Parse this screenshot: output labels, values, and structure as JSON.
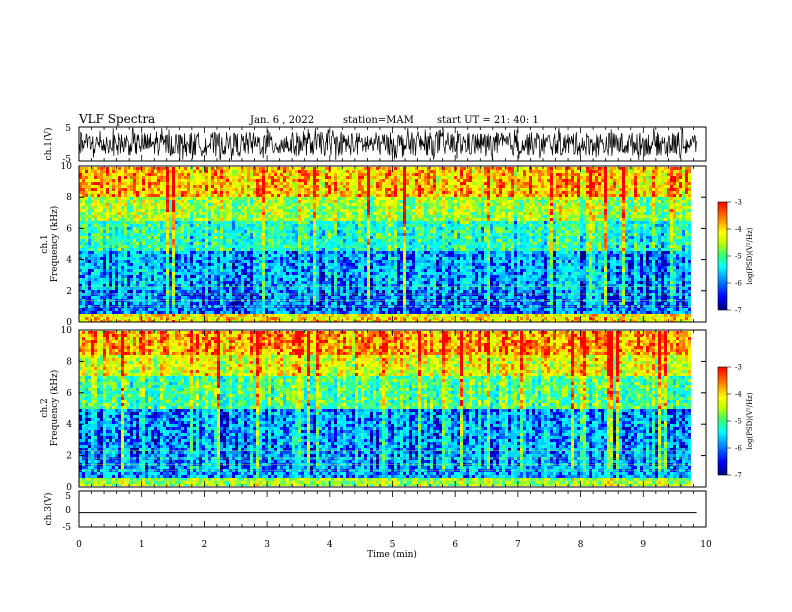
{
  "header": {
    "title": "VLF Spectra",
    "date": "Jan. 6 , 2022",
    "station": "station=MAM",
    "start_ut": "start UT =  21: 40: 1"
  },
  "colors": {
    "waveform": "#000000",
    "colormap": [
      "#000080",
      "#0000ff",
      "#00c0ff",
      "#00ffff",
      "#40ff80",
      "#c0ff00",
      "#ffff00",
      "#ff8000",
      "#ff0000"
    ]
  },
  "chart_data": [
    {
      "type": "line",
      "panel": "ch1-waveform",
      "ylabel": "ch.1(V)",
      "ylim": [
        -5,
        5
      ],
      "yticks": [
        "5",
        "-5"
      ],
      "xlim": [
        0,
        10
      ],
      "description_values": {
        "approx_amplitude_V": [
          -3.5,
          3.5
        ]
      }
    },
    {
      "type": "heatmap",
      "panel": "ch1-spectrogram",
      "ylabel_line1": "ch.1",
      "ylabel_line2": "Frequency (kHz)",
      "ylim": [
        0,
        10
      ],
      "yticks": [
        "0",
        "2",
        "4",
        "6",
        "8",
        "10"
      ],
      "xlim": [
        0,
        9.85
      ],
      "colorbar": {
        "label": "log(PSD)(V²/Hz)",
        "range": [
          -7,
          -3
        ],
        "ticks": [
          "-3",
          "-4",
          "-5",
          "-6",
          "-7"
        ]
      },
      "bands": [
        {
          "freq_kHz": [
            0,
            0.5
          ],
          "logPSD": -4.0
        },
        {
          "freq_kHz": [
            0.5,
            2
          ],
          "logPSD": -6.2
        },
        {
          "freq_kHz": [
            2,
            4.5
          ],
          "logPSD": -6.0
        },
        {
          "freq_kHz": [
            4.5,
            6.5
          ],
          "logPSD": -5.3
        },
        {
          "freq_kHz": [
            6.5,
            8
          ],
          "logPSD": -4.6
        },
        {
          "freq_kHz": [
            8,
            10
          ],
          "logPSD": -3.8
        }
      ]
    },
    {
      "type": "heatmap",
      "panel": "ch2-spectrogram",
      "ylabel_line1": "ch.2",
      "ylabel_line2": "Frequency (kHz)",
      "ylim": [
        0,
        10
      ],
      "yticks": [
        "0",
        "2",
        "4",
        "6",
        "8",
        "10"
      ],
      "xlim": [
        0,
        9.85
      ],
      "colorbar": {
        "label": "log(PSD)(V²/Hz)",
        "range": [
          -7,
          -3
        ],
        "ticks": [
          "-3",
          "-4",
          "-5",
          "-6",
          "-7"
        ]
      },
      "bands": [
        {
          "freq_kHz": [
            0,
            0.5
          ],
          "logPSD": -4.6
        },
        {
          "freq_kHz": [
            0.5,
            2
          ],
          "logPSD": -6.0
        },
        {
          "freq_kHz": [
            2,
            5
          ],
          "logPSD": -6.0
        },
        {
          "freq_kHz": [
            5,
            7
          ],
          "logPSD": -5.0
        },
        {
          "freq_kHz": [
            7,
            8.5
          ],
          "logPSD": -4.2
        },
        {
          "freq_kHz": [
            8.5,
            10
          ],
          "logPSD": -3.6
        }
      ]
    },
    {
      "type": "line",
      "panel": "ch3-waveform",
      "ylabel": "ch.3(V)",
      "ylim": [
        -5,
        5
      ],
      "yticks": [
        "5",
        "0",
        "-5"
      ],
      "xlim": [
        0,
        10
      ],
      "x": [
        0,
        9.85
      ],
      "y": [
        -1,
        -1
      ]
    }
  ],
  "x_axis": {
    "label": "Time (min)",
    "ticks": [
      "0",
      "1",
      "2",
      "3",
      "4",
      "5",
      "6",
      "7",
      "8",
      "9",
      "10"
    ],
    "range": [
      0,
      10
    ]
  }
}
